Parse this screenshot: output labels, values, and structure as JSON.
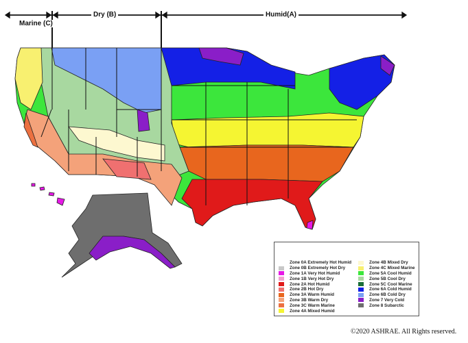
{
  "header": {
    "marine": "Marine (C)",
    "dry": "Dry (B)",
    "humid": "Humid(A)"
  },
  "legend": {
    "left": [
      {
        "label": "Zone 0A Extremely Hot Humid",
        "color": "#ffffff"
      },
      {
        "label": "Zone 0B Extremely Hot Dry",
        "color": "#c8c8c8"
      },
      {
        "label": "Zone 1A Very Hot Humid",
        "color": "#e619e6"
      },
      {
        "label": "Zone 1B Very Hot Dry",
        "color": "#f2a0d0"
      },
      {
        "label": "Zone 2A Hot Humid",
        "color": "#e01a1a"
      },
      {
        "label": "Zone 2B Hot Dry",
        "color": "#f07070"
      },
      {
        "label": "Zone 3A Warm Humid",
        "color": "#e8661e"
      },
      {
        "label": "Zone 3B Warm Dry",
        "color": "#f4a27a"
      },
      {
        "label": "Zone 3C Warm Marine",
        "color": "#ec7040"
      },
      {
        "label": "Zone 4A Mixed Humid",
        "color": "#f5f532"
      }
    ],
    "right": [
      {
        "label": "Zone 4B Mixed Dry",
        "color": "#fdf8d0"
      },
      {
        "label": "Zone 4C Mixed Marine",
        "color": "#f8f070"
      },
      {
        "label": "Zone 5A Cool Humid",
        "color": "#3ce63c"
      },
      {
        "label": "Zone 5B Cool Dry",
        "color": "#a8d8a0"
      },
      {
        "label": "Zone 5C Cool Marine",
        "color": "#1a6e3a"
      },
      {
        "label": "Zone 6A Cold Humid",
        "color": "#1420e6"
      },
      {
        "label": "Zone 6B Cold Dry",
        "color": "#7aa0f4"
      },
      {
        "label": "Zone 7 Very Cold",
        "color": "#8a1ec8"
      },
      {
        "label": "Zone 8 Subarctic",
        "color": "#6e6e6e"
      }
    ]
  },
  "copyright": "©2020 ASHRAE. All Rights reserved."
}
